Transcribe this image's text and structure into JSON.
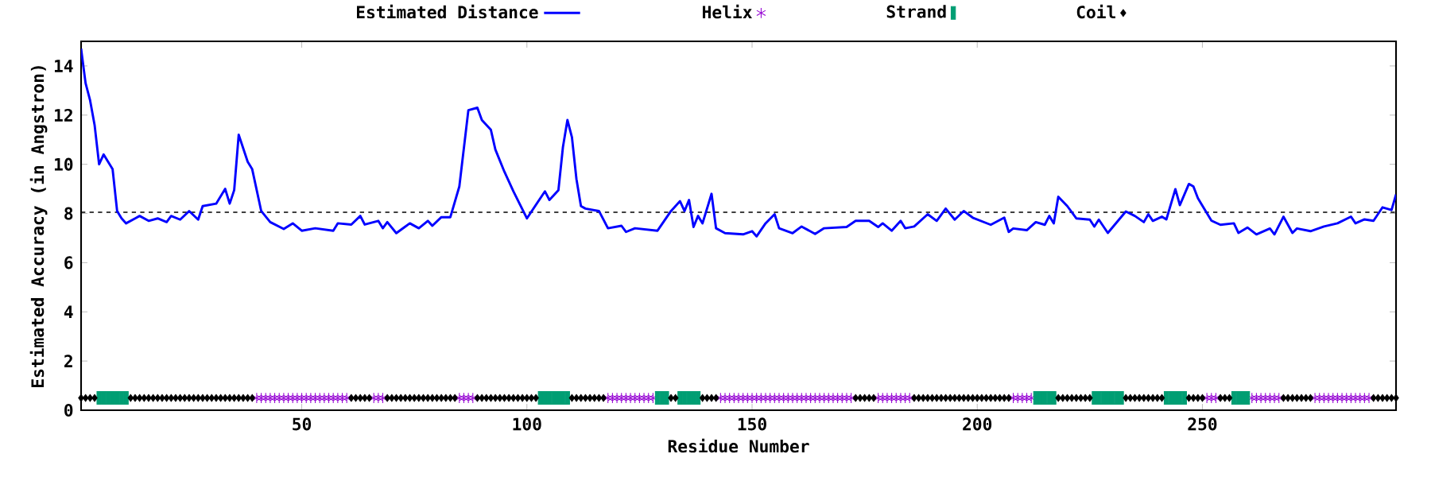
{
  "chart_data": {
    "type": "line",
    "xlabel": "Residue Number",
    "ylabel": "Estimated Accuracy (in Angstron)",
    "xlim": [
      1,
      293
    ],
    "ylim": [
      0,
      15
    ],
    "xticks": [
      50,
      100,
      150,
      200,
      250
    ],
    "yticks": [
      0,
      2,
      4,
      6,
      8,
      10,
      12,
      14
    ],
    "legend": "top",
    "ref_lines": [
      {
        "axis": "y",
        "value": 8.05,
        "color": "#000000",
        "line_style": "dashed"
      }
    ],
    "series": [
      {
        "name": "Estimated Distance",
        "color": "#0000ff",
        "marker": "none",
        "x": [
          1,
          2,
          3,
          4,
          5,
          6,
          7,
          8,
          9,
          10,
          11,
          13,
          14,
          16,
          18,
          20,
          21,
          23,
          25,
          27,
          28,
          31,
          33,
          34,
          35,
          36,
          38,
          39,
          41,
          43,
          46,
          48,
          50,
          53,
          57,
          58,
          61,
          63,
          64,
          67,
          68,
          69,
          71,
          74,
          76,
          78,
          79,
          81,
          83,
          85,
          87,
          89,
          90,
          92,
          93,
          95,
          97,
          100,
          104,
          105,
          107,
          108,
          109,
          110,
          111,
          112,
          113,
          116,
          118,
          121,
          122,
          124,
          129,
          132,
          134,
          135,
          136,
          137,
          138,
          139,
          141,
          142,
          144,
          148,
          150,
          151,
          153,
          155,
          156,
          159,
          161,
          164,
          166,
          171,
          173,
          176,
          178,
          179,
          181,
          183,
          184,
          186,
          189,
          191,
          193,
          195,
          197,
          199,
          203,
          206,
          207,
          208,
          211,
          213,
          215,
          216,
          217,
          218,
          220,
          222,
          225,
          226,
          227,
          229,
          233,
          235,
          237,
          238,
          239,
          241,
          242,
          244,
          245,
          247,
          248,
          249,
          252,
          254,
          257,
          258,
          260,
          262,
          265,
          266,
          268,
          270,
          271,
          274,
          277,
          280,
          283,
          284,
          286,
          288,
          290,
          292,
          293
        ],
        "values": [
          14.7,
          13.3,
          12.6,
          11.6,
          10.0,
          10.4,
          10.1,
          9.8,
          8.1,
          7.8,
          7.6,
          7.8,
          7.9,
          7.7,
          7.8,
          7.65,
          7.9,
          7.75,
          8.1,
          7.75,
          8.3,
          8.4,
          9.0,
          8.4,
          8.95,
          11.2,
          10.1,
          9.8,
          8.1,
          7.65,
          7.37,
          7.6,
          7.3,
          7.4,
          7.3,
          7.6,
          7.55,
          7.9,
          7.55,
          7.7,
          7.4,
          7.65,
          7.2,
          7.6,
          7.4,
          7.7,
          7.5,
          7.85,
          7.85,
          9.1,
          12.2,
          12.3,
          11.8,
          11.4,
          10.6,
          9.7,
          8.9,
          7.8,
          8.9,
          8.55,
          8.95,
          10.7,
          11.8,
          11.1,
          9.4,
          8.3,
          8.2,
          8.1,
          7.4,
          7.5,
          7.25,
          7.4,
          7.3,
          8.1,
          8.5,
          8.1,
          8.55,
          7.45,
          7.9,
          7.6,
          8.8,
          7.4,
          7.2,
          7.15,
          7.28,
          7.07,
          7.6,
          7.97,
          7.4,
          7.2,
          7.47,
          7.17,
          7.4,
          7.45,
          7.7,
          7.7,
          7.45,
          7.6,
          7.3,
          7.7,
          7.4,
          7.47,
          7.97,
          7.7,
          8.2,
          7.75,
          8.1,
          7.83,
          7.54,
          7.83,
          7.25,
          7.39,
          7.32,
          7.65,
          7.54,
          7.9,
          7.6,
          8.68,
          8.3,
          7.8,
          7.75,
          7.47,
          7.75,
          7.21,
          8.08,
          7.9,
          7.65,
          7.97,
          7.7,
          7.87,
          7.76,
          8.99,
          8.34,
          9.2,
          9.1,
          8.62,
          7.71,
          7.54,
          7.6,
          7.21,
          7.43,
          7.15,
          7.39,
          7.15,
          7.87,
          7.21,
          7.39,
          7.28,
          7.47,
          7.6,
          7.87,
          7.6,
          7.76,
          7.7,
          8.25,
          8.14,
          8.77
        ]
      },
      {
        "name": "Helix",
        "type": "scatter",
        "color": "#9400d3",
        "marker": "cross",
        "x": [
          40,
          41,
          42,
          43,
          44,
          45,
          46,
          47,
          48,
          49,
          50,
          51,
          52,
          53,
          54,
          55,
          56,
          57,
          58,
          59,
          60,
          66,
          67,
          68,
          85,
          86,
          87,
          88,
          118,
          119,
          120,
          121,
          122,
          123,
          124,
          125,
          126,
          127,
          128,
          143,
          144,
          145,
          146,
          147,
          148,
          149,
          150,
          151,
          152,
          153,
          154,
          155,
          156,
          157,
          158,
          159,
          160,
          161,
          162,
          163,
          164,
          165,
          166,
          167,
          168,
          169,
          170,
          171,
          172,
          178,
          179,
          180,
          181,
          182,
          183,
          184,
          185,
          208,
          209,
          210,
          211,
          212,
          251,
          252,
          253,
          261,
          262,
          263,
          264,
          265,
          266,
          267,
          275,
          276,
          277,
          278,
          279,
          280,
          281,
          282,
          283,
          284,
          285,
          286,
          287
        ],
        "values": [
          0.5,
          0.5,
          0.5,
          0.5,
          0.5,
          0.5,
          0.5,
          0.5,
          0.5,
          0.5,
          0.5,
          0.5,
          0.5,
          0.5,
          0.5,
          0.5,
          0.5,
          0.5,
          0.5,
          0.5,
          0.5,
          0.5,
          0.5,
          0.5,
          0.5,
          0.5,
          0.5,
          0.5,
          0.5,
          0.5,
          0.5,
          0.5,
          0.5,
          0.5,
          0.5,
          0.5,
          0.5,
          0.5,
          0.5,
          0.5,
          0.5,
          0.5,
          0.5,
          0.5,
          0.5,
          0.5,
          0.5,
          0.5,
          0.5,
          0.5,
          0.5,
          0.5,
          0.5,
          0.5,
          0.5,
          0.5,
          0.5,
          0.5,
          0.5,
          0.5,
          0.5,
          0.5,
          0.5,
          0.5,
          0.5,
          0.5,
          0.5,
          0.5,
          0.5,
          0.5,
          0.5,
          0.5,
          0.5,
          0.5,
          0.5,
          0.5,
          0.5,
          0.5,
          0.5,
          0.5,
          0.5,
          0.5,
          0.5,
          0.5,
          0.5,
          0.5,
          0.5,
          0.5,
          0.5,
          0.5,
          0.5,
          0.5,
          0.5,
          0.5,
          0.5,
          0.5,
          0.5,
          0.5,
          0.5,
          0.5,
          0.5,
          0.5,
          0.5,
          0.5,
          0.5
        ]
      },
      {
        "name": "Strand",
        "type": "scatter",
        "color": "#009e73",
        "marker": "square",
        "x": [
          5,
          6,
          7,
          8,
          9,
          10,
          11,
          103,
          104,
          105,
          106,
          107,
          108,
          109,
          129,
          130,
          131,
          134,
          135,
          136,
          137,
          138,
          213,
          214,
          215,
          216,
          217,
          226,
          227,
          228,
          229,
          230,
          231,
          232,
          242,
          243,
          244,
          245,
          246,
          257,
          258,
          259,
          260
        ],
        "values": [
          0.5,
          0.5,
          0.5,
          0.5,
          0.5,
          0.5,
          0.5,
          0.5,
          0.5,
          0.5,
          0.5,
          0.5,
          0.5,
          0.5,
          0.5,
          0.5,
          0.5,
          0.5,
          0.5,
          0.5,
          0.5,
          0.5,
          0.5,
          0.5,
          0.5,
          0.5,
          0.5,
          0.5,
          0.5,
          0.5,
          0.5,
          0.5,
          0.5,
          0.5,
          0.5,
          0.5,
          0.5,
          0.5,
          0.5,
          0.5,
          0.5,
          0.5,
          0.5
        ]
      },
      {
        "name": "Coil",
        "type": "scatter",
        "color": "#000000",
        "marker": "diamond",
        "x": [
          1,
          2,
          3,
          4,
          12,
          13,
          14,
          15,
          16,
          17,
          18,
          19,
          20,
          21,
          22,
          23,
          24,
          25,
          26,
          27,
          28,
          29,
          30,
          31,
          32,
          33,
          34,
          35,
          36,
          37,
          38,
          39,
          61,
          62,
          63,
          64,
          65,
          69,
          70,
          71,
          72,
          73,
          74,
          75,
          76,
          77,
          78,
          79,
          80,
          81,
          82,
          83,
          84,
          89,
          90,
          91,
          92,
          93,
          94,
          95,
          96,
          97,
          98,
          99,
          100,
          101,
          102,
          110,
          111,
          112,
          113,
          114,
          115,
          116,
          117,
          132,
          133,
          139,
          140,
          141,
          142,
          173,
          174,
          175,
          176,
          177,
          186,
          187,
          188,
          189,
          190,
          191,
          192,
          193,
          194,
          195,
          196,
          197,
          198,
          199,
          200,
          201,
          202,
          203,
          204,
          205,
          206,
          207,
          218,
          219,
          220,
          221,
          222,
          223,
          224,
          225,
          233,
          234,
          235,
          236,
          237,
          238,
          239,
          240,
          241,
          247,
          248,
          249,
          250,
          254,
          255,
          256,
          268,
          269,
          270,
          271,
          272,
          273,
          274,
          288,
          289,
          290,
          291,
          292,
          293
        ],
        "values": [
          0.5,
          0.5,
          0.5,
          0.5,
          0.5,
          0.5,
          0.5,
          0.5,
          0.5,
          0.5,
          0.5,
          0.5,
          0.5,
          0.5,
          0.5,
          0.5,
          0.5,
          0.5,
          0.5,
          0.5,
          0.5,
          0.5,
          0.5,
          0.5,
          0.5,
          0.5,
          0.5,
          0.5,
          0.5,
          0.5,
          0.5,
          0.5,
          0.5,
          0.5,
          0.5,
          0.5,
          0.5,
          0.5,
          0.5,
          0.5,
          0.5,
          0.5,
          0.5,
          0.5,
          0.5,
          0.5,
          0.5,
          0.5,
          0.5,
          0.5,
          0.5,
          0.5,
          0.5,
          0.5,
          0.5,
          0.5,
          0.5,
          0.5,
          0.5,
          0.5,
          0.5,
          0.5,
          0.5,
          0.5,
          0.5,
          0.5,
          0.5,
          0.5,
          0.5,
          0.5,
          0.5,
          0.5,
          0.5,
          0.5,
          0.5,
          0.5,
          0.5,
          0.5,
          0.5,
          0.5,
          0.5,
          0.5,
          0.5,
          0.5,
          0.5,
          0.5,
          0.5,
          0.5,
          0.5,
          0.5,
          0.5,
          0.5,
          0.5,
          0.5,
          0.5,
          0.5,
          0.5,
          0.5,
          0.5,
          0.5,
          0.5,
          0.5,
          0.5,
          0.5,
          0.5,
          0.5,
          0.5,
          0.5,
          0.5,
          0.5,
          0.5,
          0.5,
          0.5,
          0.5,
          0.5,
          0.5,
          0.5,
          0.5,
          0.5,
          0.5,
          0.5,
          0.5,
          0.5,
          0.5,
          0.5,
          0.5,
          0.5,
          0.5,
          0.5,
          0.5,
          0.5,
          0.5,
          0.5,
          0.5,
          0.5,
          0.5,
          0.5,
          0.5,
          0.5,
          0.5,
          0.5,
          0.5,
          0.5,
          0.5,
          0.5
        ]
      }
    ]
  }
}
